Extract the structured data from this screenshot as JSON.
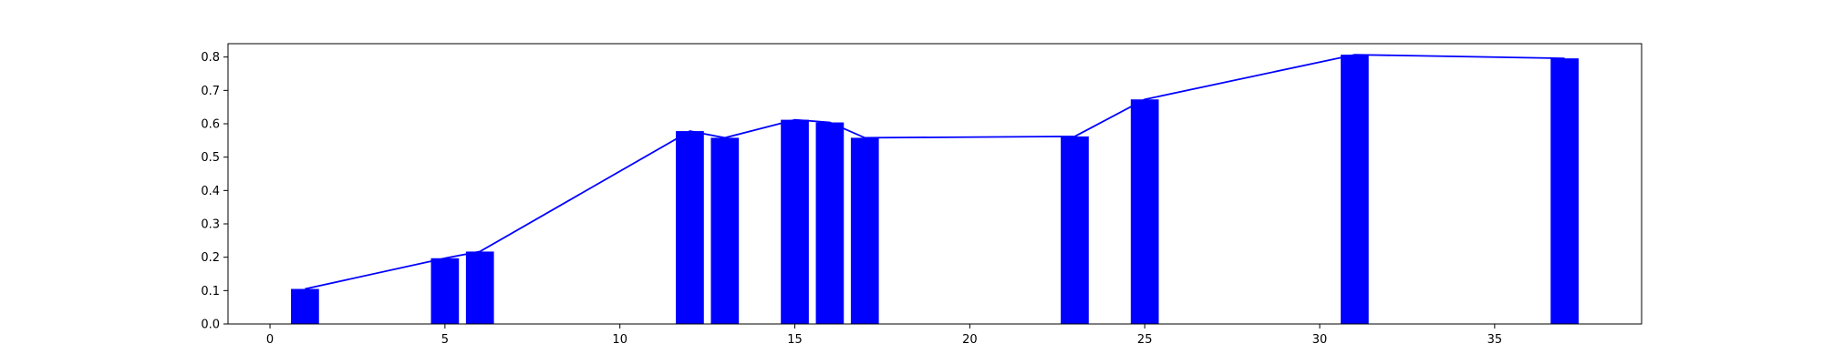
{
  "chart_data": {
    "type": "bar",
    "title": "",
    "xlabel": "",
    "ylabel": "",
    "xlim": [
      -1.2,
      39.2
    ],
    "ylim": [
      0,
      0.84
    ],
    "grid": false,
    "legend": "none",
    "bar_width": 0.8,
    "colors": {
      "bar": "#0000ff",
      "line": "#0000ff",
      "axes": "#000000",
      "background": "#ffffff"
    },
    "x": [
      1,
      5,
      6,
      12,
      13,
      15,
      16,
      17,
      23,
      25,
      31,
      37
    ],
    "values": [
      0.105,
      0.197,
      0.217,
      0.578,
      0.558,
      0.612,
      0.604,
      0.558,
      0.562,
      0.673,
      0.807,
      0.796
    ],
    "line_overlay": true,
    "x_ticks": [
      "0",
      "5",
      "10",
      "15",
      "20",
      "25",
      "30",
      "35"
    ],
    "y_ticks": [
      "0.0",
      "0.1",
      "0.2",
      "0.3",
      "0.4",
      "0.5",
      "0.6",
      "0.7",
      "0.8"
    ]
  }
}
